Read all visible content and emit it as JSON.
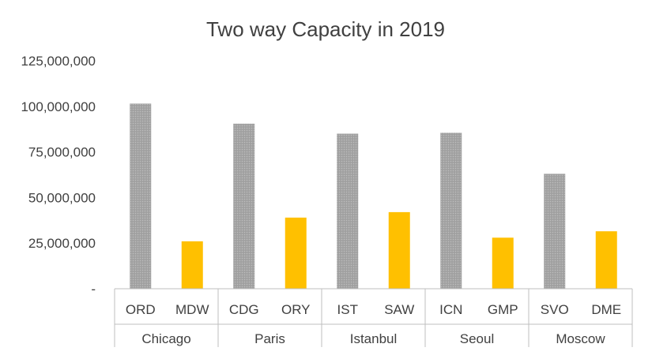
{
  "chart_data": {
    "type": "bar",
    "title": "Two way Capacity in 2019",
    "xlabel": "",
    "ylabel": "",
    "ylim": [
      0,
      125000000
    ],
    "yticks": [
      0,
      25000000,
      50000000,
      75000000,
      100000000,
      125000000
    ],
    "ytick_labels": [
      "-",
      "25,000,000",
      "50,000,000",
      "75,000,000",
      "100,000,000",
      "125,000,000"
    ],
    "grid": false,
    "groups": [
      {
        "name": "Chicago",
        "airports": [
          {
            "code": "ORD",
            "value": 101500000,
            "type": "primary"
          },
          {
            "code": "MDW",
            "value": 26000000,
            "type": "secondary"
          }
        ]
      },
      {
        "name": "Paris",
        "airports": [
          {
            "code": "CDG",
            "value": 90500000,
            "type": "primary"
          },
          {
            "code": "ORY",
            "value": 39000000,
            "type": "secondary"
          }
        ]
      },
      {
        "name": "Istanbul",
        "airports": [
          {
            "code": "IST",
            "value": 85000000,
            "type": "primary"
          },
          {
            "code": "SAW",
            "value": 42000000,
            "type": "secondary"
          }
        ]
      },
      {
        "name": "Seoul",
        "airports": [
          {
            "code": "ICN",
            "value": 85500000,
            "type": "primary"
          },
          {
            "code": "GMP",
            "value": 28000000,
            "type": "secondary"
          }
        ]
      },
      {
        "name": "Moscow",
        "airports": [
          {
            "code": "SVO",
            "value": 63000000,
            "type": "primary"
          },
          {
            "code": "DME",
            "value": 31500000,
            "type": "secondary"
          }
        ]
      }
    ],
    "colors": {
      "primary": "#a6a6a6",
      "secondary": "#ffc000",
      "axis": "#bfbfbf",
      "text": "#404040"
    }
  }
}
